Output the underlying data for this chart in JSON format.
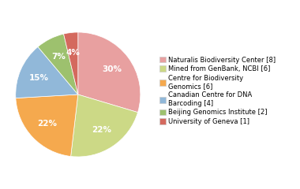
{
  "legend_labels": [
    "Naturalis Biodiversity Center [8]",
    "Mined from GenBank, NCBI [6]",
    "Centre for Biodiversity\nGenomics [6]",
    "Canadian Centre for DNA\nBarcoding [4]",
    "Beijing Genomics Institute [2]",
    "University of Geneva [1]"
  ],
  "values": [
    8,
    6,
    6,
    4,
    2,
    1
  ],
  "colors": [
    "#e8a0a0",
    "#ccd986",
    "#f5a94e",
    "#91b8d9",
    "#9dc16e",
    "#d4695e"
  ],
  "startangle": 90,
  "background_color": "#ffffff",
  "fontsize": 7.5,
  "legend_fontsize": 6.0
}
